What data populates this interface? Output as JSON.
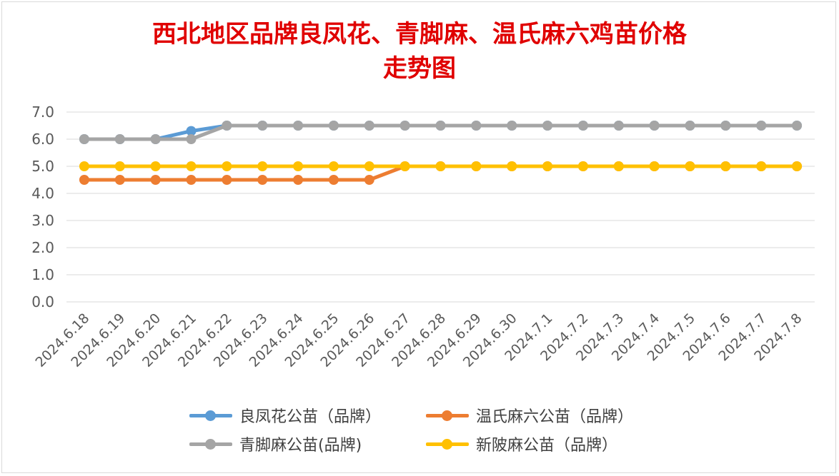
{
  "chart_data": {
    "type": "line",
    "title_line1": "西北地区品牌良凤花、青脚麻、温氏麻六鸡苗价格",
    "title_line2": "走势图",
    "categories": [
      "2024.6.18",
      "2024.6.19",
      "2024.6.20",
      "2024.6.21",
      "2024.6.22",
      "2024.6.23",
      "2024.6.24",
      "2024.6.25",
      "2024.6.26",
      "2024.6.27",
      "2024.6.28",
      "2024.6.29",
      "2024.6.30",
      "2024.7.1",
      "2024.7.2",
      "2024.7.3",
      "2024.7.4",
      "2024.7.5",
      "2024.7.6",
      "2024.7.7",
      "2024.7.8"
    ],
    "y_ticks": [
      "0.0",
      "1.0",
      "2.0",
      "3.0",
      "4.0",
      "5.0",
      "6.0",
      "7.0"
    ],
    "ylim": [
      0,
      7
    ],
    "grid": true,
    "legend_position": "bottom",
    "series": [
      {
        "name": "良凤花公苗（品牌）",
        "color": "#5b9bd5",
        "values": [
          6.0,
          6.0,
          6.0,
          6.3,
          6.5,
          6.5,
          6.5,
          6.5,
          6.5,
          6.5,
          6.5,
          6.5,
          6.5,
          6.5,
          6.5,
          6.5,
          6.5,
          6.5,
          6.5,
          6.5,
          6.5
        ]
      },
      {
        "name": "温氏麻六公苗（品牌）",
        "color": "#ed7d31",
        "values": [
          4.5,
          4.5,
          4.5,
          4.5,
          4.5,
          4.5,
          4.5,
          4.5,
          4.5,
          5.0,
          5.0,
          5.0,
          5.0,
          5.0,
          5.0,
          5.0,
          5.0,
          5.0,
          5.0,
          5.0,
          5.0
        ]
      },
      {
        "name": "青脚麻公苗(品牌)",
        "color": "#a5a5a5",
        "values": [
          6.0,
          6.0,
          6.0,
          6.0,
          6.5,
          6.5,
          6.5,
          6.5,
          6.5,
          6.5,
          6.5,
          6.5,
          6.5,
          6.5,
          6.5,
          6.5,
          6.5,
          6.5,
          6.5,
          6.5,
          6.5
        ]
      },
      {
        "name": "新陂麻公苗（品牌）",
        "color": "#ffc000",
        "values": [
          5.0,
          5.0,
          5.0,
          5.0,
          5.0,
          5.0,
          5.0,
          5.0,
          5.0,
          5.0,
          5.0,
          5.0,
          5.0,
          5.0,
          5.0,
          5.0,
          5.0,
          5.0,
          5.0,
          5.0,
          5.0
        ]
      }
    ]
  }
}
